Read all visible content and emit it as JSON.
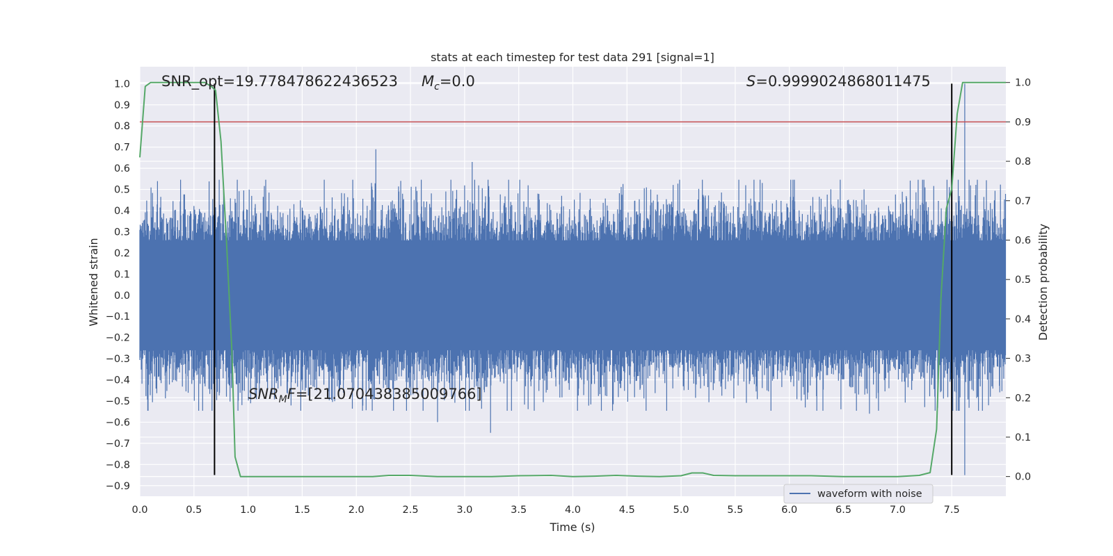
{
  "chart_data": {
    "type": "line",
    "title": "stats at each timestep for test data 291 [signal=1]",
    "xlabel": "Time (s)",
    "ylabel": "Whitened strain",
    "y2label": "Detection probability",
    "xlim": [
      0.0,
      8.0
    ],
    "ylim": [
      -0.95,
      1.08
    ],
    "y2lim": [
      -0.05,
      1.04
    ],
    "xticks": [
      "0.0",
      "0.5",
      "1.0",
      "1.5",
      "2.0",
      "2.5",
      "3.0",
      "3.5",
      "4.0",
      "4.5",
      "5.0",
      "5.5",
      "6.0",
      "6.5",
      "7.0",
      "7.5"
    ],
    "yticks": [
      "1.0",
      "0.9",
      "0.8",
      "0.7",
      "0.6",
      "0.5",
      "0.4",
      "0.3",
      "0.2",
      "0.1",
      "0.0",
      "-0.1",
      "-0.2",
      "-0.3",
      "-0.4",
      "-0.5",
      "-0.6",
      "-0.7",
      "-0.8",
      "-0.9"
    ],
    "y2ticks": [
      "0.0",
      "0.1",
      "0.2",
      "0.3",
      "0.4",
      "0.5",
      "0.6",
      "0.7",
      "0.8",
      "0.9",
      "1.0"
    ],
    "grid": true,
    "legend": {
      "placement": "lower right",
      "entries": [
        "waveform with noise"
      ]
    },
    "annotations": {
      "snr_opt": "SNR_opt=19.778478622436523",
      "mc_sym": "M",
      "mc_sub": "c",
      "mc_val": "=0.0",
      "s_sym": "S",
      "s_val": "=0.9999024868011475",
      "snrmf_sym": "SNR",
      "snrmf_sub": "M",
      "snrmf_f": "F",
      "snrmf_val": "=[21.070438385009766]"
    },
    "threshold": {
      "y2": 0.9,
      "color": "#c44e52"
    },
    "vlines": {
      "x": [
        0.69,
        7.5
      ],
      "ymin": -0.85,
      "ymax": 1.0,
      "color": "#000000"
    },
    "series": [
      {
        "name": "waveform with noise",
        "axis": "left",
        "color": "#4c72b0",
        "x_range": [
          0.0,
          8.0
        ],
        "typical_amplitude": 0.25,
        "peak_extent": 0.7,
        "notable_peaks": [
          {
            "x": 2.18,
            "y": 0.69
          },
          {
            "x": 3.07,
            "y": 0.63
          },
          {
            "x": 3.24,
            "y": -0.65
          },
          {
            "x": 7.62,
            "y": 1.0
          },
          {
            "x": 7.62,
            "y": -0.85
          },
          {
            "x": 6.74,
            "y": -0.56
          },
          {
            "x": 2.75,
            "y": -0.6
          }
        ]
      },
      {
        "name": "detection probability",
        "axis": "right",
        "color": "#55a868",
        "x": [
          0.0,
          0.05,
          0.1,
          0.2,
          0.4,
          0.6,
          0.66,
          0.7,
          0.75,
          0.8,
          0.85,
          0.88,
          0.93,
          1.0,
          1.5,
          2.0,
          2.15,
          2.3,
          2.5,
          2.75,
          3.0,
          3.25,
          3.5,
          3.8,
          4.0,
          4.2,
          4.4,
          4.6,
          4.8,
          5.0,
          5.1,
          5.2,
          5.3,
          5.5,
          6.0,
          6.2,
          6.5,
          7.0,
          7.2,
          7.3,
          7.36,
          7.4,
          7.45,
          7.5,
          7.55,
          7.6,
          7.63,
          7.7,
          8.0
        ],
        "y": [
          0.81,
          0.99,
          1.0,
          1.0,
          1.0,
          1.0,
          0.99,
          0.98,
          0.85,
          0.6,
          0.32,
          0.05,
          0.0,
          0.0,
          0.0,
          0.0,
          0.0,
          0.003,
          0.003,
          0.0,
          0.0,
          0.0,
          0.002,
          0.003,
          0.0,
          0.001,
          0.003,
          0.001,
          0.0,
          0.002,
          0.009,
          0.009,
          0.003,
          0.002,
          0.002,
          0.002,
          0.0,
          0.0,
          0.003,
          0.01,
          0.12,
          0.45,
          0.68,
          0.73,
          0.92,
          1.0,
          1.0,
          1.0,
          1.0
        ]
      }
    ]
  }
}
